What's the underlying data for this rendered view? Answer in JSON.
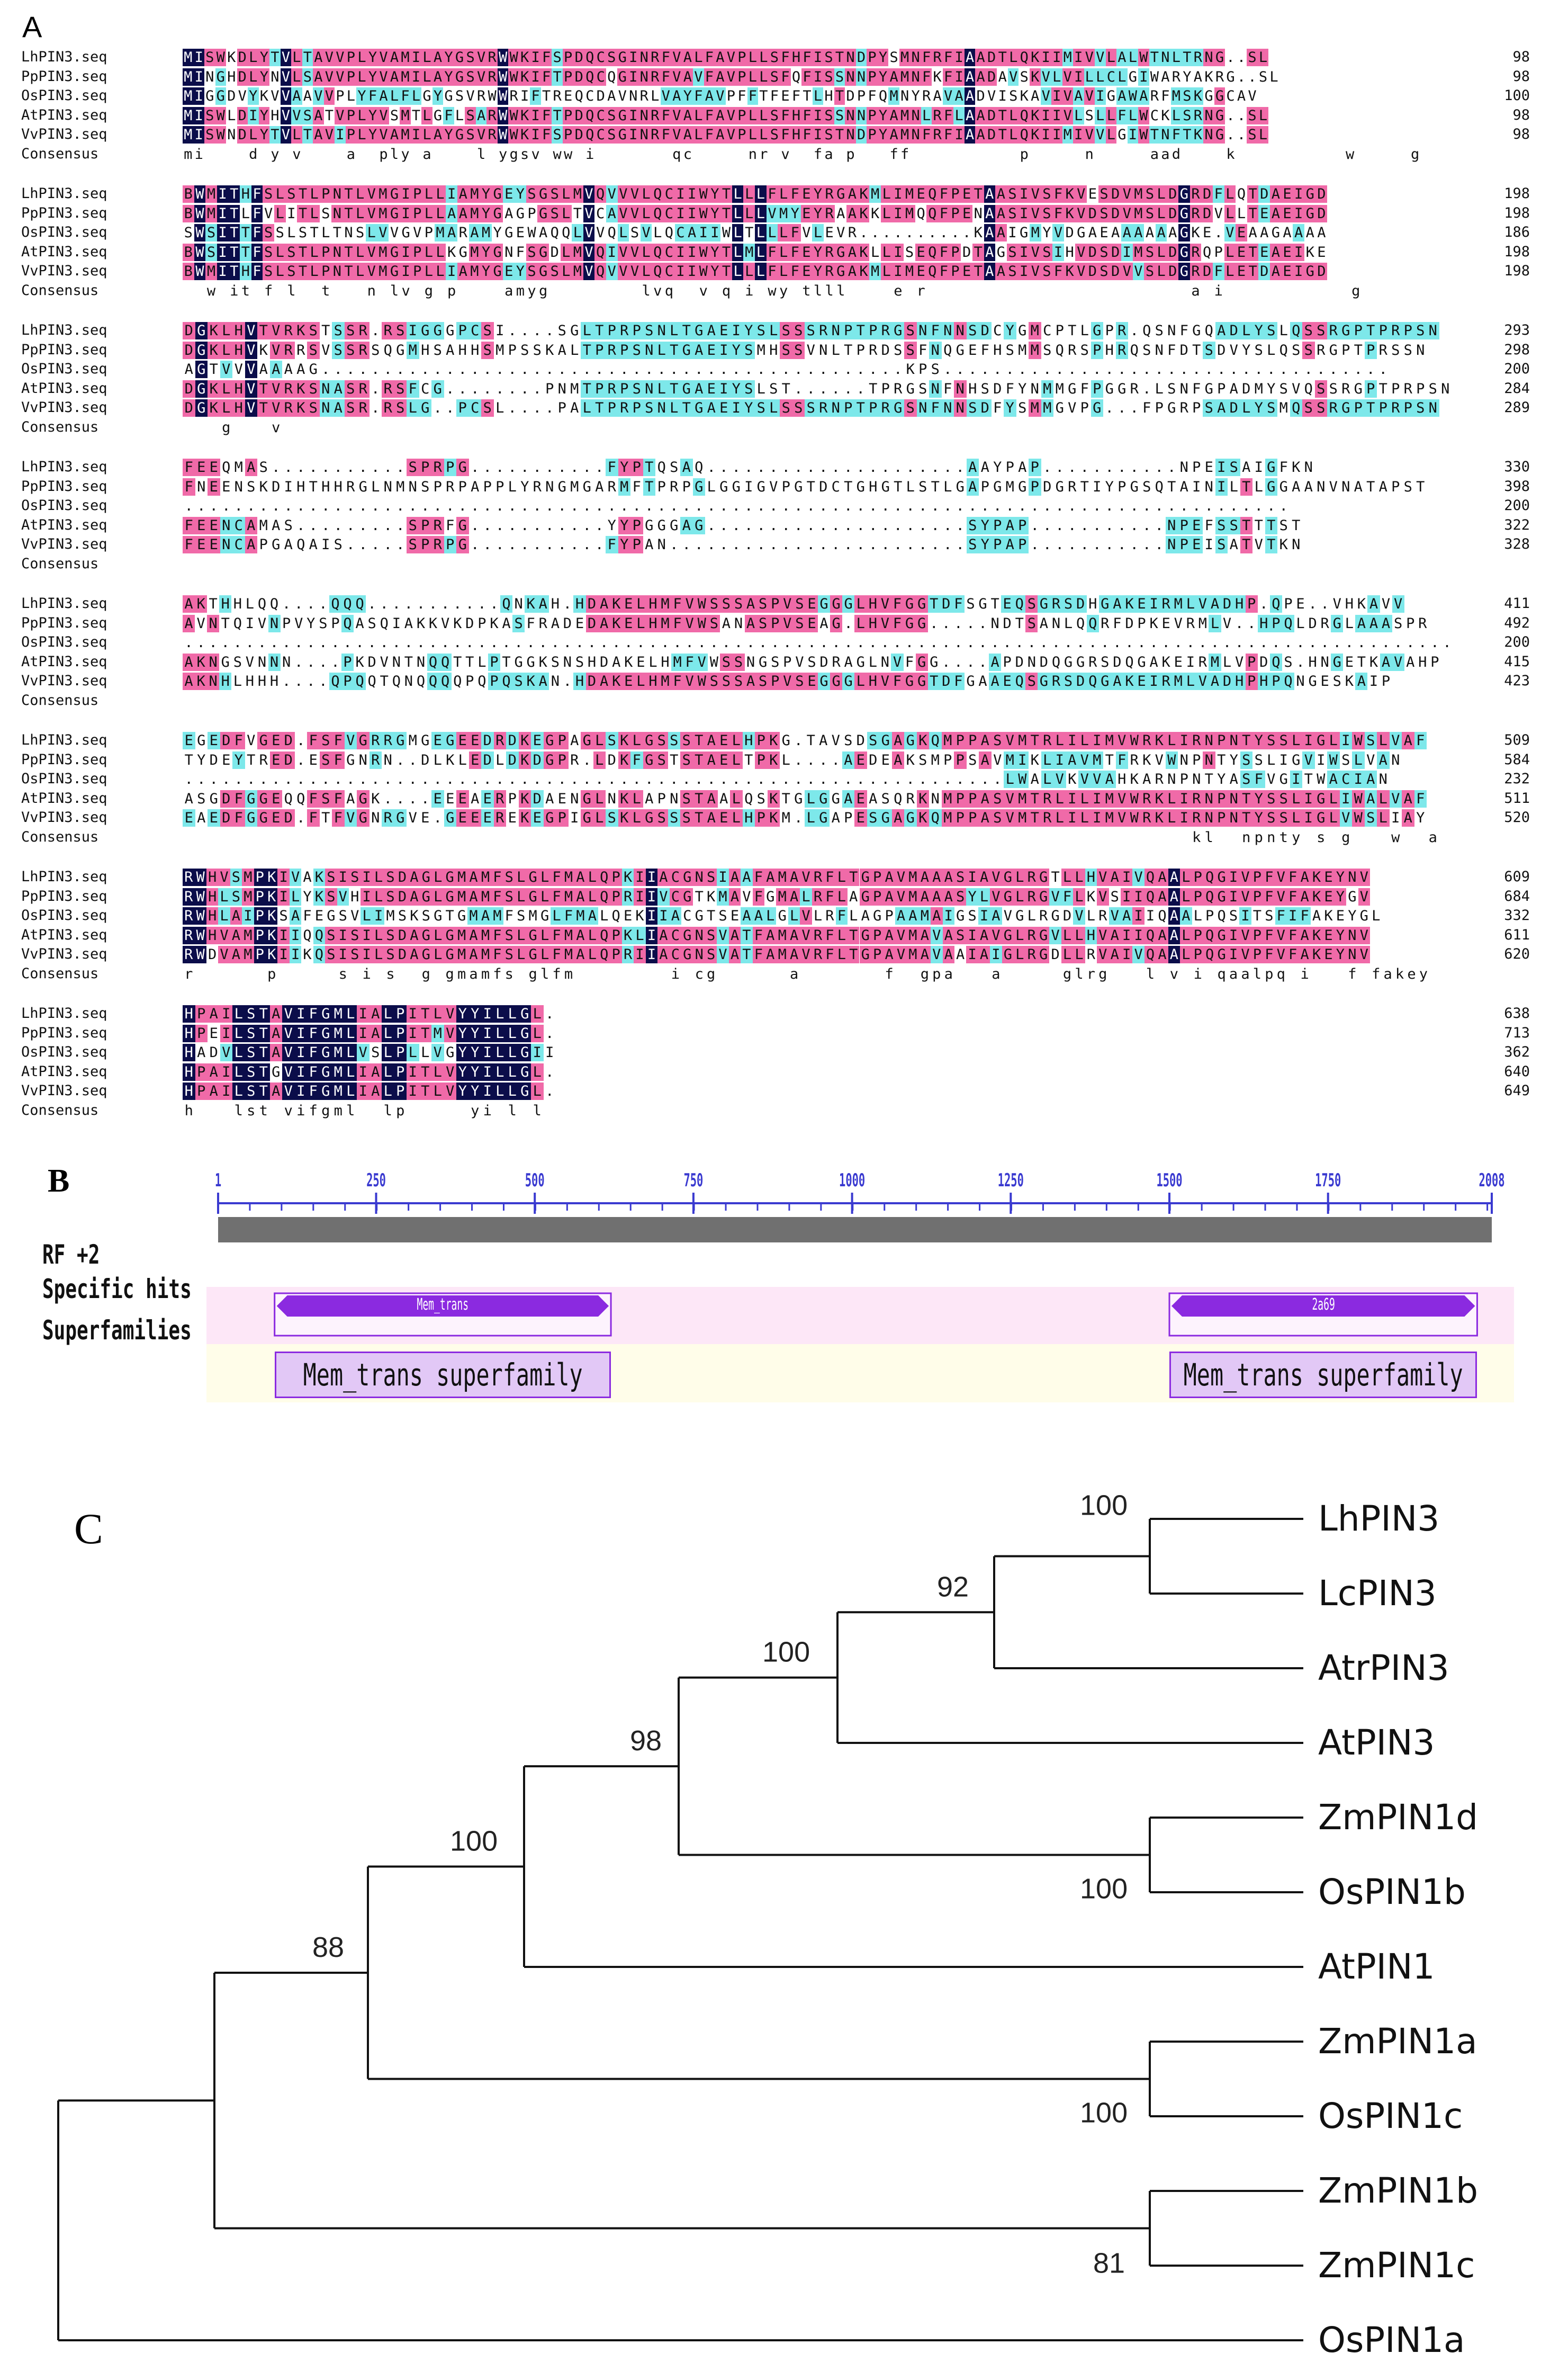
{
  "panel_a": {
    "label": "A",
    "colors": {
      "identical": "#0b0d4a",
      "strong": "#f06aa8",
      "weak": "#7de8ea"
    },
    "blocks": [
      {
        "rows": [
          {
            "name": "LhPIN3.seq",
            "seq": "MISWKDLYTVLTAVVPLYVAMILAYGSVRWWKIFSPDQCSGINRFVALFAVPLLSFHFISTNDPYSMNFRFIAADTLQKIIMIVVLALWTNLTRNG..SL",
            "num": "98"
          },
          {
            "name": "PpPIN3.seq",
            "seq": "MINGHDLYNVLSAVVPLYVAMILAYGSVRWWKIFTPDQCQGINRFVAVFAVPLLSFQFISSNNPYAMNFKFIAADAVSKVLVILLCLGIWARYAKRG..SL",
            "num": "98"
          },
          {
            "name": "OsPIN3.seq",
            "seq": "MIGGDVYKVVAAVVPLYFALFLGYGSVRWWRIFTREQCDAVNRLVAYFAVPFFTFEFTLHTDPFQMNYRAVAADVISKAVIVAVIGAWARFMSKGGCAV",
            "num": "100"
          },
          {
            "name": "AtPIN3.seq",
            "seq": "MISWLDIYHVVSATVPLYVSMTLGFLSARWWKIFTPDQCSGINRFVALFAVPLLSFHFISSNNPYAMNLRFLAADTLQKIIVLSLLFLWCKLSRNG..SL",
            "num": "98"
          },
          {
            "name": "VvPIN3.seq",
            "seq": "MISWNDLYTVLTAVIPLYVAMILAYGSVRWWKIFSPDQCSGINRFVALFAVPLLSFHFISTNDPYAMNFRFIAADTLQKIIMIVVLGIWTNFTKNG..SL",
            "num": "98"
          },
          {
            "name": "Consensus",
            "seq": "mi    d y v    a  ply a    l ygsv ww i       qc     nr v  fa p   ff          p     n     aad    k          w     g   ",
            "num": ""
          }
        ]
      },
      {
        "rows": [
          {
            "name": "LhPIN3.seq",
            "seq": "BWMITHFSLSTLPNTLVMGIPLLIAMYGEYSGSLMVQVVVLQCIIWYTLLLFLFEYRGAKMLIMEQFPETAASIVSFKVESDVMSLDGRDFLQTDAEIGD",
            "num": "198"
          },
          {
            "name": "PpPIN3.seq",
            "seq": "BWMITLFVLITLSNTLVMGIPLLAAMYGAGPGSLTVCAVVLQCIIWYTLLLVMYEYRAAKKLIMQQFPENAASIVSFKVDSDVMSLDGRDVLLTEAEIGD",
            "num": "198"
          },
          {
            "name": "OsPIN3.seq",
            "seq": "SWSITTFSSLSTLTNSLVVGVPMARAMYGEWAQQLVVQLSVLQCAIIWLTLLLFVLEVR..........KAAIGMYVDGAEAAAAAAGKE.VEAAGAAAA",
            "num": "186"
          },
          {
            "name": "AtPIN3.seq",
            "seq": "BWSITTFSLSTLPNTLVMGIPLLKGMYGNFSGDLMVQIVVLQCIIWYTLMLFLFEYRGAKLLISEQFPDTAGSIVSIHVDSDIMSLDGRQPLETEAEIKE",
            "num": "198"
          },
          {
            "name": "VvPIN3.seq",
            "seq": "BWMITHFSLSTLPNTLVMGIPLLIAMYGEYSGSLMVQVVVLQCIIWYTLLLFLFEYRGAKMLIMEQFPETAASIVSFKVDSDVVSLDGRDFLETDAEIGD",
            "num": "198"
          },
          {
            "name": "Consensus",
            "seq": "  w it f l  t   n lv g p    amyg        lvq  v q i wy tlll    e r                       a i           g        ",
            "num": ""
          }
        ]
      },
      {
        "rows": [
          {
            "name": "LhPIN3.seq",
            "seq": "DGKLHVTVRKSTSSR.RSIGGGPCSI....SGLTPRPSNLTGAEIYSLSSSRNPTPRGSNFNNSDCYGMCPTLGPR.QSNFGQADLYSLQSSRGPTPRPSN",
            "num": "293"
          },
          {
            "name": "PpPIN3.seq",
            "seq": "DGKLHVKVRRSVSSRSQGMHSAHHSMPSSKALTPRPSNLTGAEIYSMHSSVNLTPRDSSFNQGEFHSMMSQRSPHRQSNFDTSDVYSLQSSRGPTPRSSN",
            "num": "298"
          },
          {
            "name": "OsPIN3.seq",
            "seq": "AGTVVVAAAAG...............................................KPS....................................",
            "num": "200"
          },
          {
            "name": "AtPIN3.seq",
            "seq": "DGKLHVTVRKSNASR.RSFCG........PNMTPRPSNLTGAEIYSLST......TPRGSNFNHSDFYNMMGFPGGR.LSNFGPADMYSVQSSRGPTPRPSN",
            "num": "284"
          },
          {
            "name": "VvPIN3.seq",
            "seq": "DGKLHVTVRKSNASR.RSLG..PCSL....PALTPRPSNLTGAEIYSLSSSRNPTPRGSNFNNSDFYSMMGVPG...FPGRPSADLYSMQSSRGPTPRPSN",
            "num": "289"
          },
          {
            "name": "Consensus",
            "seq": "   g   v                                                                                       ",
            "num": ""
          }
        ]
      },
      {
        "rows": [
          {
            "name": "LhPIN3.seq",
            "seq": "FEEQMAS...........SPRPG...........FYPTQSAQ.....................AAYPAP...........NPEISAIGFKN",
            "num": "330"
          },
          {
            "name": "PpPIN3.seq",
            "seq": "FNEENSKDIHTHHRGLNMNSPRPAPPLYRNGMGARMFTPRPGLGGIGVPGTDCTGHGTLSTLGAPGMGPDGRTIYPGSQTAINILTLGGAANVNATAPST",
            "num": "398"
          },
          {
            "name": "OsPIN3.seq",
            "seq": ".........................................................................................",
            "num": "200"
          },
          {
            "name": "AtPIN3.seq",
            "seq": "FEENCAMAS.........SPRFG...........YYPGGGAG.....................SYPAP...........NPEFSSTTTST",
            "num": "322"
          },
          {
            "name": "VvPIN3.seq",
            "seq": "FEENCAPGAQAIS.....SPRPG...........FYPAN........................SYPAP...........NPEISATVTKN",
            "num": "328"
          },
          {
            "name": "Consensus",
            "seq": "",
            "num": ""
          }
        ]
      },
      {
        "rows": [
          {
            "name": "LhPIN3.seq",
            "seq": "AKTHHLQQ....QQQ...........QNKAH.HDAKELHMFVWSSSASPVSEGGGLHVFGGTDFSGTEQSGRSDHGAKEIRMLVADHP.QPE..VHKAVV",
            "num": "411"
          },
          {
            "name": "PpPIN3.seq",
            "seq": "AVNTQIVNPVYSPQASQIAKKVKDPKASFRADEDAKELHMFVWSANASPVSEAG.LHVFGG.....NDTSANLQQRFDPKEVRMLV..HPQLDRGLAAASPR",
            "num": "492"
          },
          {
            "name": "OsPIN3.seq",
            "seq": "........................................................................................................",
            "num": "200"
          },
          {
            "name": "AtPIN3.seq",
            "seq": "AKNGSVNNN....PKDVNTNQQTTLPTGGKSNSHDAKELHMFVWSSNGSPVSDRAGLNVFGG....APDNDQGGRSDQGAKEIRMLVPDQS.HNGETKAVAHP",
            "num": "415"
          },
          {
            "name": "VvPIN3.seq",
            "seq": "AKNHLHHH....QPQQTQNQQQQPQPQSKAN.HDAKELHMFVWSSSASPVSEGGGLHVFGGTDFGAAEQSGRSDQGAKEIRMLVADHPHPQNGESKAIP",
            "num": "423"
          },
          {
            "name": "Consensus",
            "seq": "",
            "num": ""
          }
        ]
      },
      {
        "rows": [
          {
            "name": "LhPIN3.seq",
            "seq": "EGEDFVGED.FSFVGRRGMGEGEEDRDKEGPAGLSKLGSSSTAELHPKG.TAVSDSGAGKQMPPASVMTRLILIMVWRKLIRNPNTYSSLIGLIWSLVAF",
            "num": "509"
          },
          {
            "name": "PpPIN3.seq",
            "seq": "TYDEYTRED.ESFGNRN..DLKLEDLDKDGPR.LDKFGSTSTAELTPKL....AEDEAKSMPPSAVMIKLIAVMTFRKVWNPNTYSSLIGVIWSLVAN",
            "num": "584"
          },
          {
            "name": "OsPIN3.seq",
            "seq": "..................................................................LWALVKVVAHKARNPNTYASFVGITWACIAN",
            "num": "232"
          },
          {
            "name": "AtPIN3.seq",
            "seq": "ASGDFGGEQQFSFAGK....EEEAERPKDAENGLNKLAPNSTAALQSKTGLGGAEASQRKNMPPASVMTRLILIMVWRKLIRNPNTYSSLIGLIWALVAF",
            "num": "511"
          },
          {
            "name": "VvPIN3.seq",
            "seq": "EAEDFGGED.FTFVGNRGVE.GEEEREKEGPIGLSKLGSSSTAELHPKM.LGAPESGAGKQMPPASVMTRLILIMVWRKLIRNPNTYSSLIGLVWSLIAY",
            "num": "520"
          },
          {
            "name": "Consensus",
            "seq": "                                                                                 kl  npnty s g   w  a ",
            "num": ""
          }
        ]
      },
      {
        "rows": [
          {
            "name": "LhPIN3.seq",
            "seq": "RWHVSMPKIVAKSISILSDAGLGMAMFSLGLFMALQPKIIACGNSIAAFAMAVRFLTGPAVMAAASIAVGLRGTLLHVAIVQAALPQGIVPFVFAKEYNV",
            "num": "609"
          },
          {
            "name": "PpPIN3.seq",
            "seq": "RWHLSMPKILYKSVHILSDAGLGMAMFSLGLFMALQPRIIVCGTKMAVFGMALRFLAGPAVMAAASYLVGLRGVFLKVSIIQAALPQGIVPFVFAKEYGV",
            "num": "684"
          },
          {
            "name": "OsPIN3.seq",
            "seq": "RWHLAIPKSAFEGSVLIMSKSGTGMAMFSMGLFMALQEKIIACGTSEAALGLVLRFLAGPAAMAIGSIAVGLRGDVLRVAIIQAALPQSITSFIFAKEYGL",
            "num": "332"
          },
          {
            "name": "AtPIN3.seq",
            "seq": "RWHVAMPKIIQQSISILSDAGLGMAMFSLGLFMALQPKLIACGNSVATFAMAVRFLTGPAVMAVASIAVGLRGVLLHVAIIQAALPQGIVPFVFAKEYNV",
            "num": "611"
          },
          {
            "name": "VvPIN3.seq",
            "seq": "RWDVAMPKIIKQSISILSDAGLGMAMFSLGLFMALQPRIIACGNSVATFAMAVRFLTGPAVMAVAAIAIGLRGDLLRVAIVQAALPQGIVPFVFAKEYNV",
            "num": "620"
          },
          {
            "name": "Consensus",
            "seq": "r      p     s i s  g gmamfs glfm        i cg      a       f  gpa   a     glrg   l v i qaalpq i   f fakey  ",
            "num": ""
          }
        ]
      },
      {
        "rows": [
          {
            "name": "LhPIN3.seq",
            "seq": "HPAILSTAVIFGMLIALPITLVYYILLGL.",
            "num": "638"
          },
          {
            "name": "PpPIN3.seq",
            "seq": "HPEILSTAVIFGMLIALPITMVYYILLGL.",
            "num": "713"
          },
          {
            "name": "OsPIN3.seq",
            "seq": "HADVLSTAVIFGMLVSLPLLVGYYILLGII",
            "num": "362"
          },
          {
            "name": "AtPIN3.seq",
            "seq": "HPAILSTGVIFGMLIALPITLVYYILLGL.",
            "num": "640"
          },
          {
            "name": "VvPIN3.seq",
            "seq": "HPAILSTAVIFGMLIALPITLVYYILLGL.",
            "num": "649"
          },
          {
            "name": "Consensus",
            "seq": "h   lst vifgml  lp     yi l l  ",
            "num": ""
          }
        ]
      }
    ]
  },
  "panel_b": {
    "label": "B",
    "ruler": {
      "min": 1,
      "max": 2008,
      "ticks": [
        "1",
        "250",
        "500",
        "750",
        "1000",
        "1250",
        "1500",
        "1750",
        "2008"
      ],
      "tick_values": [
        1,
        250,
        500,
        750,
        1000,
        1250,
        1500,
        1750,
        2008
      ]
    },
    "track_labels": {
      "frame": "RF +2",
      "specific": "Specific hits",
      "superfamilies": "Superfamilies"
    },
    "hits": [
      {
        "name": "Mem_trans",
        "start": 90,
        "end": 620
      },
      {
        "name": "2a69",
        "start": 1500,
        "end": 1985
      }
    ],
    "superfamilies": [
      {
        "name": "Mem_trans superfamily",
        "start": 90,
        "end": 620
      },
      {
        "name": "Mem_trans superfamily",
        "start": 1500,
        "end": 1985
      }
    ]
  },
  "panel_c": {
    "label": "C",
    "leaves": [
      "LhPIN3",
      "LcPIN3",
      "AtrPIN3",
      "AtPIN3",
      "ZmPIN1d",
      "OsPIN1b",
      "AtPIN1",
      "ZmPIN1a",
      "OsPIN1c",
      "ZmPIN1b",
      "ZmPIN1c",
      "OsPIN1a"
    ],
    "bootstrap": [
      "100",
      "92",
      "100",
      "98",
      "100",
      "100",
      "88",
      "100",
      "81"
    ]
  }
}
